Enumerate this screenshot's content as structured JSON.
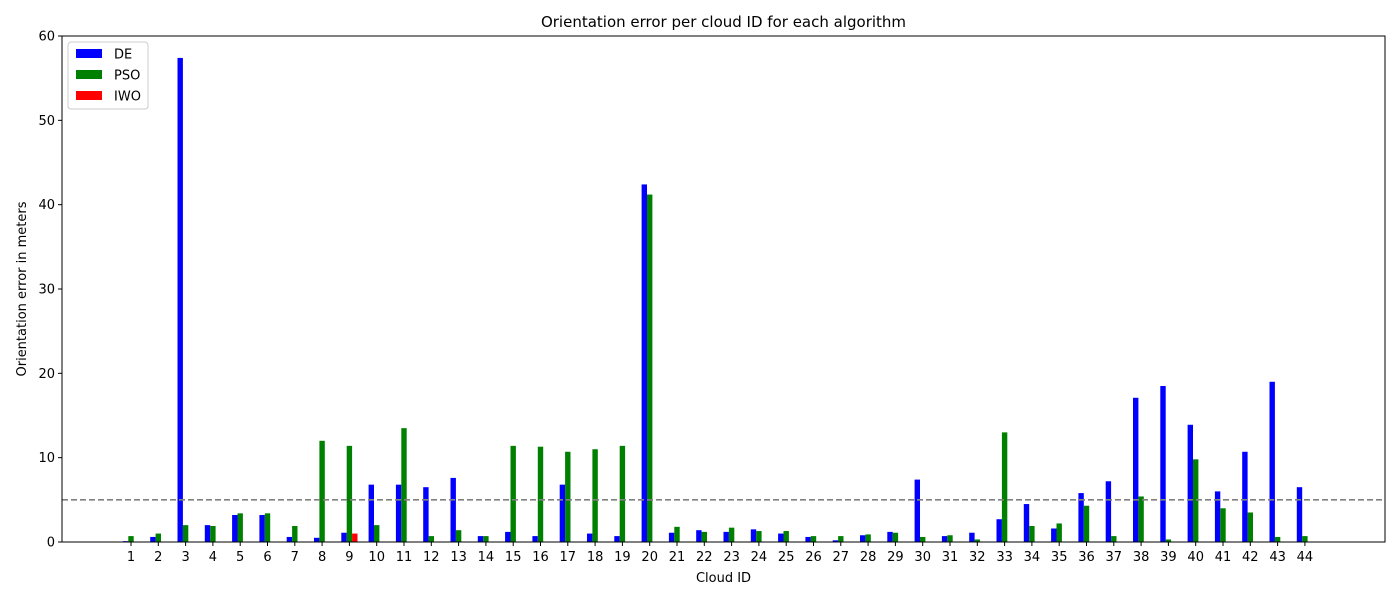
{
  "chart_data": {
    "type": "bar",
    "title": "Orientation error per cloud ID for each algorithm",
    "xlabel": "Cloud ID",
    "ylabel": "Orientation error in meters",
    "ylim": [
      0,
      60
    ],
    "yticks": [
      0,
      10,
      20,
      30,
      40,
      50,
      60
    ],
    "categories": [
      "1",
      "2",
      "3",
      "4",
      "5",
      "6",
      "7",
      "8",
      "9",
      "10",
      "11",
      "12",
      "13",
      "14",
      "15",
      "16",
      "17",
      "18",
      "19",
      "20",
      "21",
      "22",
      "23",
      "24",
      "25",
      "26",
      "27",
      "28",
      "29",
      "30",
      "31",
      "32",
      "33",
      "34",
      "35",
      "36",
      "37",
      "38",
      "39",
      "40",
      "41",
      "42",
      "43",
      "44"
    ],
    "series": [
      {
        "name": "DE",
        "color": "#0000ff",
        "values": [
          0.1,
          0.6,
          57.4,
          2.0,
          3.2,
          3.2,
          0.6,
          0.5,
          1.1,
          6.8,
          6.8,
          6.5,
          7.6,
          0.7,
          1.2,
          0.7,
          6.8,
          1.0,
          0.7,
          42.4,
          1.1,
          1.4,
          1.2,
          1.5,
          1.0,
          0.6,
          0.2,
          0.8,
          1.2,
          7.4,
          0.7,
          1.1,
          2.7,
          4.5,
          1.6,
          5.8,
          7.2,
          17.1,
          18.5,
          13.9,
          6.0,
          10.7,
          19.0,
          6.5
        ]
      },
      {
        "name": "PSO",
        "color": "#008000",
        "values": [
          0.7,
          1.0,
          2.0,
          1.9,
          3.4,
          3.4,
          1.9,
          12.0,
          11.4,
          2.0,
          13.5,
          0.7,
          1.4,
          0.7,
          11.4,
          11.3,
          10.7,
          11.0,
          11.4,
          41.2,
          1.8,
          1.2,
          1.7,
          1.3,
          1.3,
          0.7,
          0.7,
          0.9,
          1.1,
          0.6,
          0.8,
          0.3,
          13.0,
          1.9,
          2.2,
          4.3,
          0.7,
          5.4,
          0.3,
          9.8,
          4.0,
          3.5,
          0.6,
          0.7
        ]
      },
      {
        "name": "IWO",
        "color": "#ff0000",
        "values": [
          0,
          0,
          0,
          0,
          0,
          0,
          0,
          0,
          1.0,
          0,
          0,
          0,
          0,
          0,
          0,
          0,
          0,
          0,
          0,
          0,
          0,
          0,
          0,
          0,
          0,
          0,
          0,
          0,
          0,
          0,
          0,
          0,
          0,
          0,
          0,
          0,
          0,
          0,
          0,
          0,
          0,
          0,
          0,
          0
        ]
      }
    ],
    "reference_line": {
      "y": 5,
      "style": "dashed",
      "color": "#808080"
    },
    "legend_position": "upper-left",
    "grid": false
  }
}
